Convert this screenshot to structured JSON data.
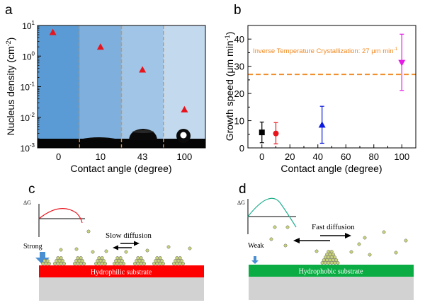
{
  "panel_labels": {
    "a": "a",
    "b": "b",
    "c": "c",
    "d": "d"
  },
  "chart_data": [
    {
      "panel": "a",
      "type": "scatter",
      "categories": [
        "0",
        "10",
        "43",
        "100"
      ],
      "values": [
        6.0,
        2.0,
        0.36,
        0.018
      ],
      "xlabel": "Contact angle (degree)",
      "ylabel": "Nucleus density (cm-2)",
      "ylabel_base": "Nucleus density (cm",
      "ylabel_sup": "-2",
      "ylabel_end": ")",
      "yscale": "log",
      "ylim": [
        0.001,
        10
      ],
      "yticks": [
        {
          "base": "10",
          "exp": "-3"
        },
        {
          "base": "10",
          "exp": "-2"
        },
        {
          "base": "10",
          "exp": "-1"
        },
        {
          "base": "10",
          "exp": "0"
        },
        {
          "base": "10",
          "exp": "1"
        }
      ],
      "marker_color": "#e8141c",
      "region_colors": [
        "#5a9bd5",
        "#7eafdd",
        "#a1c5e6",
        "#c3d9ee"
      ],
      "divider_color": "#e98c34",
      "grid": false
    },
    {
      "panel": "b",
      "type": "scatter",
      "x": [
        0,
        10,
        43,
        100
      ],
      "y": [
        5.7,
        5.3,
        8.5,
        31.3
      ],
      "yerr_low": [
        3.8,
        3.8,
        6.8,
        10.2
      ],
      "yerr_high": [
        3.8,
        4.0,
        6.8,
        10.5
      ],
      "markers": [
        "square",
        "circle",
        "triangle-up",
        "triangle-down"
      ],
      "colors": [
        "#000000",
        "#e8141c",
        "#0a1ae0",
        "#e619e6"
      ],
      "xlabel": "Contact angle (degree)",
      "ylabel": "Growth speed (μm min-1)",
      "ylabel_base": "Growth speed (μm min",
      "ylabel_sup": "-1",
      "ylabel_end": ")",
      "xlim": [
        -10,
        110
      ],
      "ylim": [
        0,
        45
      ],
      "xticks": [
        0,
        20,
        40,
        60,
        80,
        100
      ],
      "yticks": [
        0,
        10,
        20,
        30,
        40
      ],
      "reference_line": {
        "y": 27,
        "label": "Inverse Temperature Crystallization: 27 μm min",
        "label_sup": "-1",
        "color": "#f08a24"
      },
      "grid": false
    }
  ],
  "schematics": {
    "c": {
      "delta_g": "ΔG",
      "diffusion_label": "Slow diffusion",
      "interaction_label": "Strong",
      "substrate_label": "Hydrophilic substrate",
      "substrate_color": "#ff0000",
      "curve_color": "#e8141c"
    },
    "d": {
      "delta_g": "ΔG",
      "diffusion_label": "Fast diffusion",
      "interaction_label": "Weak",
      "substrate_label": "Hydrophobic substrate",
      "substrate_color": "#0aac43",
      "curve_color": "#1fae8e"
    },
    "base_color": "#d2d2d2",
    "particle_color": "#c8d277"
  }
}
